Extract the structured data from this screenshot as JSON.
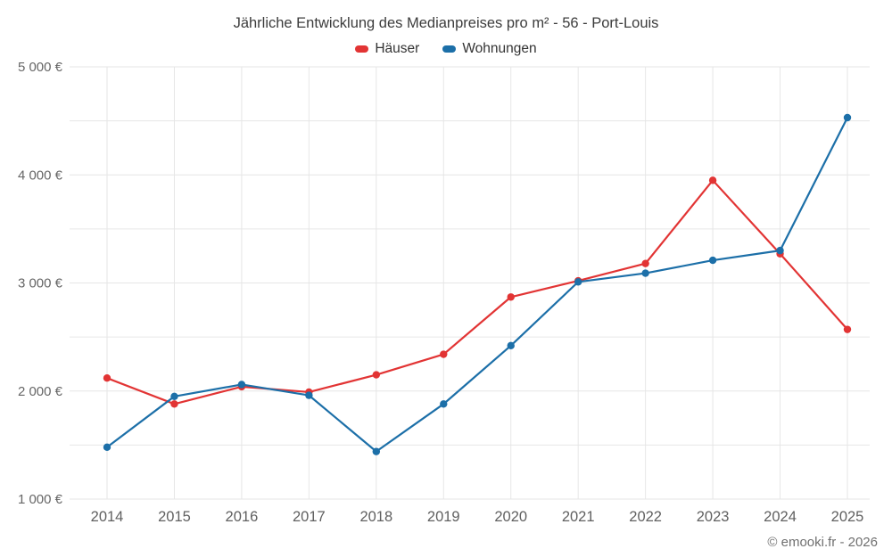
{
  "title": "Jährliche Entwicklung des Medianpreises pro m² - 56 - Port-Louis",
  "footer": "© emooki.fr - 2026",
  "legend": [
    {
      "label": "Häuser",
      "color": "#e23434"
    },
    {
      "label": "Wohnungen",
      "color": "#1c6fa8"
    }
  ],
  "chart_data": {
    "type": "line",
    "title": "Jährliche Entwicklung des Medianpreises pro m² - 56 - Port-Louis",
    "x": [
      2014,
      2015,
      2016,
      2017,
      2018,
      2019,
      2020,
      2021,
      2022,
      2023,
      2024,
      2025
    ],
    "series": [
      {
        "name": "Häuser",
        "color": "#e23434",
        "values": [
          2120,
          1880,
          2040,
          1990,
          2150,
          2340,
          2870,
          3020,
          3180,
          3950,
          3270,
          2570
        ]
      },
      {
        "name": "Wohnungen",
        "color": "#1c6fa8",
        "values": [
          1480,
          1950,
          2060,
          1960,
          1440,
          1880,
          2420,
          3010,
          3090,
          3210,
          3300,
          4530
        ]
      }
    ],
    "xlabel": "",
    "ylabel": "",
    "ylim": [
      1000,
      5000
    ],
    "ytick_step": 500,
    "ytick_suffix": " €",
    "grid": true,
    "legend_position": "top"
  }
}
